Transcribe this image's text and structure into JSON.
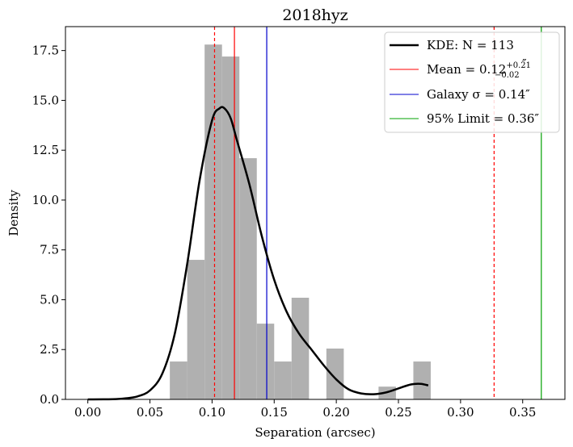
{
  "chart_data": {
    "type": "histogram",
    "title": "2018hyz",
    "xlabel": "Separation (arcsec)",
    "ylabel": "Density",
    "xlim": [
      -0.018,
      0.384
    ],
    "ylim": [
      0,
      18.7
    ],
    "x_ticks": [
      0.0,
      0.05,
      0.1,
      0.15,
      0.2,
      0.25,
      0.3,
      0.35
    ],
    "x_tick_labels": [
      "0.00",
      "0.05",
      "0.10",
      "0.15",
      "0.20",
      "0.25",
      "0.30",
      "0.35"
    ],
    "y_ticks": [
      0,
      2.5,
      5,
      7.5,
      10,
      12.5,
      15,
      17.5
    ],
    "y_tick_labels": [
      "0.0",
      "2.5",
      "5.0",
      "7.5",
      "10.0",
      "12.5",
      "15.0",
      "17.5"
    ],
    "histogram": {
      "color": "#b0b0b0",
      "bins": [
        {
          "x0": 0.066,
          "x1": 0.08,
          "value": 1.9
        },
        {
          "x0": 0.08,
          "x1": 0.094,
          "value": 7.0
        },
        {
          "x0": 0.094,
          "x1": 0.108,
          "value": 17.8
        },
        {
          "x0": 0.108,
          "x1": 0.122,
          "value": 17.2
        },
        {
          "x0": 0.122,
          "x1": 0.136,
          "value": 12.1
        },
        {
          "x0": 0.136,
          "x1": 0.15,
          "value": 3.8
        },
        {
          "x0": 0.15,
          "x1": 0.164,
          "value": 1.9
        },
        {
          "x0": 0.164,
          "x1": 0.178,
          "value": 5.1
        },
        {
          "x0": 0.178,
          "x1": 0.192,
          "value": 0
        },
        {
          "x0": 0.192,
          "x1": 0.206,
          "value": 2.55
        },
        {
          "x0": 0.206,
          "x1": 0.22,
          "value": 0
        },
        {
          "x0": 0.22,
          "x1": 0.234,
          "value": 0
        },
        {
          "x0": 0.234,
          "x1": 0.248,
          "value": 0.64
        },
        {
          "x0": 0.248,
          "x1": 0.262,
          "value": 0
        },
        {
          "x0": 0.262,
          "x1": 0.276,
          "value": 1.9
        }
      ]
    },
    "kde": {
      "color": "#000000",
      "points": [
        [
          0.0,
          0.0
        ],
        [
          0.02,
          0.01
        ],
        [
          0.03,
          0.05
        ],
        [
          0.04,
          0.15
        ],
        [
          0.05,
          0.45
        ],
        [
          0.06,
          1.3
        ],
        [
          0.07,
          3.3
        ],
        [
          0.08,
          6.8
        ],
        [
          0.09,
          11.0
        ],
        [
          0.1,
          14.0
        ],
        [
          0.106,
          14.6
        ],
        [
          0.11,
          14.6
        ],
        [
          0.115,
          14.1
        ],
        [
          0.12,
          13.0
        ],
        [
          0.13,
          10.8
        ],
        [
          0.14,
          8.2
        ],
        [
          0.15,
          6.0
        ],
        [
          0.16,
          4.4
        ],
        [
          0.17,
          3.3
        ],
        [
          0.18,
          2.5
        ],
        [
          0.19,
          1.7
        ],
        [
          0.2,
          1.0
        ],
        [
          0.21,
          0.5
        ],
        [
          0.22,
          0.3
        ],
        [
          0.23,
          0.26
        ],
        [
          0.24,
          0.35
        ],
        [
          0.25,
          0.55
        ],
        [
          0.26,
          0.75
        ],
        [
          0.268,
          0.78
        ],
        [
          0.274,
          0.7
        ]
      ]
    },
    "vertical_lines": [
      {
        "name": "mean",
        "x": 0.118,
        "color": "#ff0000",
        "style": "solid"
      },
      {
        "name": "mean-lower",
        "x": 0.102,
        "color": "#ff0000",
        "style": "dashed"
      },
      {
        "name": "mean-upper",
        "x": 0.327,
        "color": "#ff0000",
        "style": "dashed"
      },
      {
        "name": "galaxy-sigma",
        "x": 0.144,
        "color": "#0000cc",
        "style": "solid"
      },
      {
        "name": "limit-95",
        "x": 0.365,
        "color": "#00a000",
        "style": "solid"
      }
    ],
    "legend": {
      "position": "top-right",
      "entries": [
        {
          "label": "KDE: N = 113",
          "color": "#000000",
          "width": 2.5
        },
        {
          "label": "Mean = 0.12",
          "sup": "+0.21",
          "sub": "−0.02",
          "suffix": "″",
          "color": "#ff0000",
          "width": 1
        },
        {
          "label": "Galaxy σ = 0.14″",
          "color": "#0000cc",
          "width": 1
        },
        {
          "label": "95% Limit = 0.36″",
          "color": "#00a000",
          "width": 1
        }
      ]
    }
  }
}
